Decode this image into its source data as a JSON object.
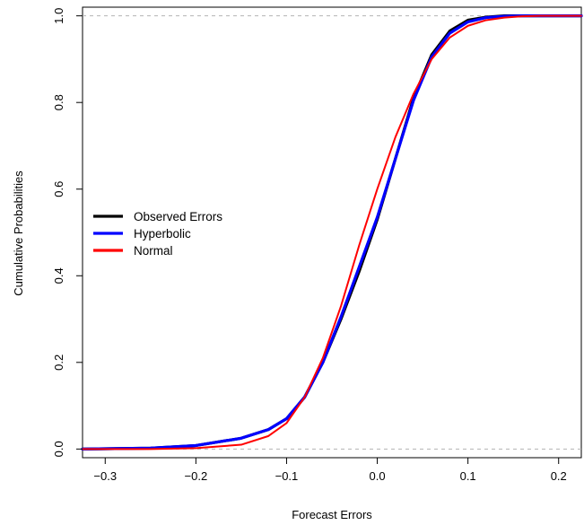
{
  "chart_data": {
    "type": "line",
    "xlabel": "Forecast Errors",
    "ylabel": "Cumulative Probabilities",
    "xlim": [
      -0.325,
      0.225
    ],
    "ylim": [
      -0.02,
      1.02
    ],
    "x_ticks": [
      -0.3,
      -0.2,
      -0.1,
      0.0,
      0.1,
      0.2
    ],
    "x_tick_labels": [
      "−0.3",
      "−0.2",
      "−0.1",
      "0.0",
      "0.1",
      "0.2"
    ],
    "y_ticks": [
      0.0,
      0.2,
      0.4,
      0.6,
      0.8,
      1.0
    ],
    "y_tick_labels": [
      "0.0",
      "0.2",
      "0.4",
      "0.6",
      "0.8",
      "1.0"
    ],
    "reference_lines": [
      0,
      1
    ],
    "legend_position": "left-middle",
    "series": [
      {
        "name": "Observed Errors",
        "color": "#000000",
        "x": [
          -0.325,
          -0.25,
          -0.2,
          -0.15,
          -0.12,
          -0.1,
          -0.08,
          -0.06,
          -0.04,
          -0.02,
          0.0,
          0.02,
          0.04,
          0.06,
          0.08,
          0.1,
          0.12,
          0.14,
          0.16,
          0.225
        ],
        "y": [
          0.0,
          0.002,
          0.008,
          0.025,
          0.045,
          0.07,
          0.12,
          0.2,
          0.3,
          0.41,
          0.53,
          0.67,
          0.81,
          0.91,
          0.965,
          0.99,
          0.997,
          1.0,
          1.0,
          1.0
        ]
      },
      {
        "name": "Hyperbolic",
        "color": "#0000ff",
        "x": [
          -0.325,
          -0.25,
          -0.2,
          -0.15,
          -0.12,
          -0.1,
          -0.08,
          -0.06,
          -0.04,
          -0.02,
          0.0,
          0.02,
          0.04,
          0.06,
          0.08,
          0.1,
          0.12,
          0.14,
          0.16,
          0.225
        ],
        "y": [
          0.0,
          0.002,
          0.008,
          0.025,
          0.045,
          0.07,
          0.12,
          0.2,
          0.305,
          0.42,
          0.535,
          0.67,
          0.805,
          0.905,
          0.96,
          0.986,
          0.996,
          0.999,
          1.0,
          1.0
        ]
      },
      {
        "name": "Normal",
        "color": "#ff0000",
        "x": [
          -0.325,
          -0.25,
          -0.2,
          -0.15,
          -0.12,
          -0.1,
          -0.08,
          -0.06,
          -0.04,
          -0.02,
          0.0,
          0.02,
          0.04,
          0.06,
          0.08,
          0.1,
          0.12,
          0.14,
          0.16,
          0.18,
          0.2,
          0.225
        ],
        "y": [
          0.0,
          0.0,
          0.002,
          0.01,
          0.03,
          0.06,
          0.12,
          0.21,
          0.33,
          0.47,
          0.6,
          0.72,
          0.82,
          0.9,
          0.95,
          0.977,
          0.99,
          0.996,
          0.999,
          1.0,
          1.0,
          1.0
        ]
      }
    ]
  }
}
